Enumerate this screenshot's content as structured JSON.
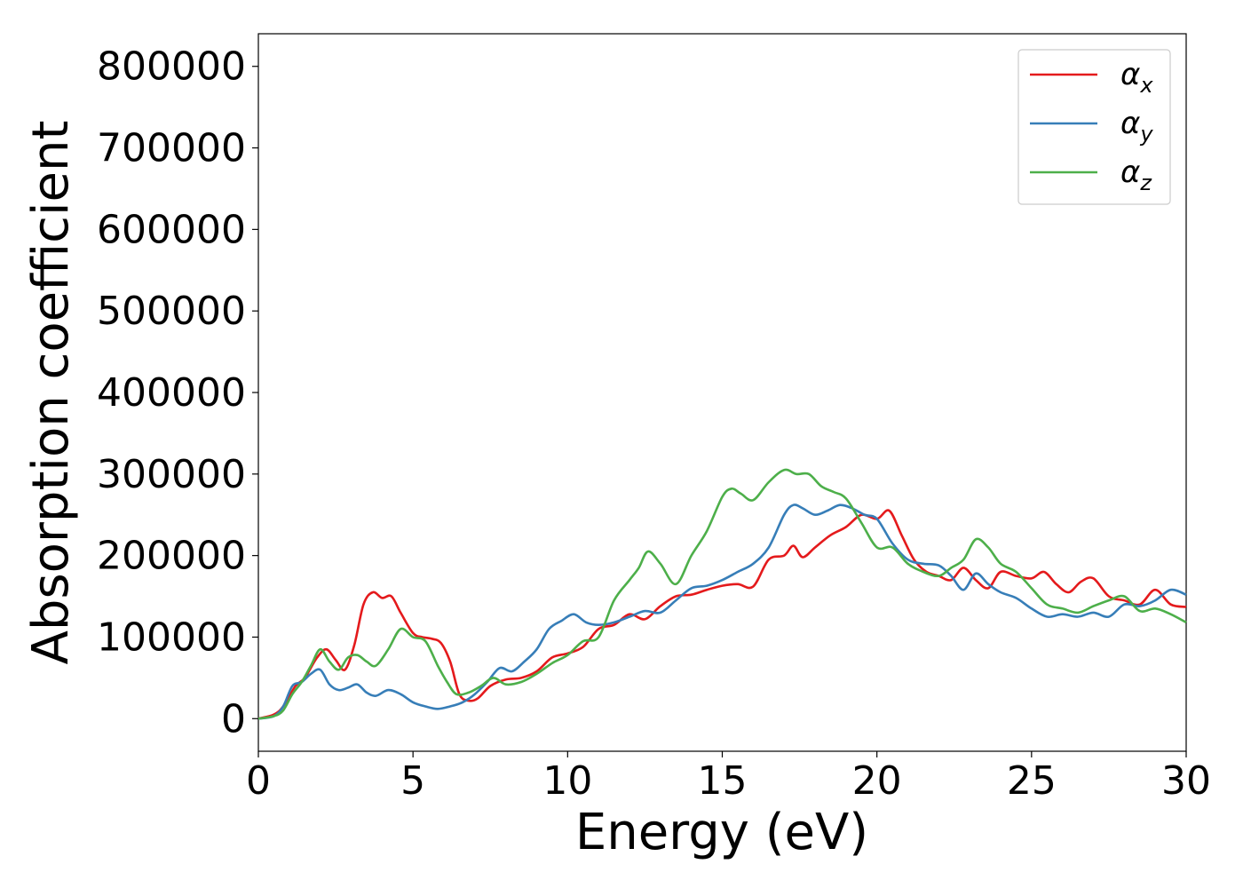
{
  "chart_data": {
    "type": "line",
    "title": "",
    "xlabel": "Energy (eV)",
    "ylabel": "Absorption coefficient",
    "xlim": [
      0,
      30
    ],
    "ylim": [
      -40000,
      840000
    ],
    "xticks": [
      0,
      5,
      10,
      15,
      20,
      25,
      30
    ],
    "yticks": [
      0,
      100000,
      200000,
      300000,
      400000,
      500000,
      600000,
      700000,
      800000
    ],
    "xtick_labels": [
      "0",
      "5",
      "10",
      "15",
      "20",
      "25",
      "30"
    ],
    "ytick_labels": [
      "0",
      "100000",
      "200000",
      "300000",
      "400000",
      "500000",
      "600000",
      "700000",
      "800000"
    ],
    "grid": false,
    "legend_position": "top-right",
    "series": [
      {
        "name": "α_x",
        "legend_base": "α",
        "legend_sub": "x",
        "color": "#e41a1c",
        "x": [
          0,
          0.5,
          0.8,
          1.2,
          1.5,
          1.9,
          2.2,
          2.5,
          2.8,
          3.1,
          3.4,
          3.7,
          4.0,
          4.3,
          4.6,
          5.0,
          5.3,
          5.6,
          5.9,
          6.2,
          6.5,
          6.8,
          7.1,
          7.5,
          8.0,
          8.5,
          9.0,
          9.5,
          10.0,
          10.5,
          11.0,
          11.5,
          12.0,
          12.5,
          13.0,
          13.5,
          14.0,
          14.5,
          15.0,
          15.5,
          16.0,
          16.5,
          17.0,
          17.3,
          17.6,
          18.0,
          18.5,
          19.0,
          19.5,
          20.0,
          20.4,
          20.8,
          21.2,
          21.6,
          22.0,
          22.4,
          22.8,
          23.2,
          23.6,
          24.0,
          24.5,
          25.0,
          25.4,
          25.8,
          26.2,
          26.6,
          27.0,
          27.5,
          28.0,
          28.5,
          29.0,
          29.5,
          30.0
        ],
        "values": [
          0,
          5000,
          15000,
          40000,
          50000,
          75000,
          85000,
          72000,
          60000,
          90000,
          140000,
          155000,
          148000,
          150000,
          130000,
          105000,
          100000,
          98000,
          93000,
          70000,
          30000,
          22000,
          25000,
          40000,
          48000,
          50000,
          58000,
          75000,
          80000,
          88000,
          110000,
          115000,
          128000,
          122000,
          138000,
          150000,
          152000,
          158000,
          163000,
          165000,
          162000,
          195000,
          200000,
          212000,
          198000,
          210000,
          225000,
          235000,
          250000,
          245000,
          255000,
          225000,
          195000,
          180000,
          175000,
          170000,
          185000,
          170000,
          160000,
          180000,
          175000,
          172000,
          180000,
          165000,
          155000,
          168000,
          172000,
          150000,
          145000,
          140000,
          158000,
          140000,
          137000
        ]
      },
      {
        "name": "α_y",
        "legend_base": "α",
        "legend_sub": "y",
        "color": "#377eb8",
        "x": [
          0,
          0.5,
          0.8,
          1.1,
          1.4,
          1.7,
          2.0,
          2.3,
          2.6,
          2.9,
          3.2,
          3.5,
          3.8,
          4.2,
          4.6,
          5.0,
          5.4,
          5.8,
          6.2,
          6.6,
          7.0,
          7.4,
          7.8,
          8.2,
          8.6,
          9.0,
          9.4,
          9.8,
          10.2,
          10.6,
          11.0,
          11.5,
          12.0,
          12.5,
          13.0,
          13.5,
          14.0,
          14.5,
          15.0,
          15.5,
          16.0,
          16.5,
          17.0,
          17.3,
          17.6,
          18.0,
          18.4,
          18.8,
          19.2,
          19.6,
          20.0,
          20.5,
          21.0,
          21.5,
          22.0,
          22.4,
          22.8,
          23.2,
          23.6,
          24.0,
          24.5,
          25.0,
          25.5,
          26.0,
          26.5,
          27.0,
          27.5,
          28.0,
          28.5,
          29.0,
          29.5,
          30.0
        ],
        "values": [
          0,
          3000,
          15000,
          40000,
          45000,
          55000,
          60000,
          42000,
          35000,
          38000,
          42000,
          32000,
          28000,
          35000,
          30000,
          20000,
          15000,
          12000,
          15000,
          20000,
          30000,
          45000,
          62000,
          58000,
          70000,
          85000,
          110000,
          120000,
          128000,
          118000,
          115000,
          118000,
          125000,
          132000,
          130000,
          145000,
          160000,
          163000,
          170000,
          180000,
          190000,
          210000,
          250000,
          262000,
          258000,
          250000,
          255000,
          262000,
          258000,
          250000,
          245000,
          215000,
          195000,
          190000,
          188000,
          175000,
          158000,
          178000,
          165000,
          155000,
          148000,
          135000,
          125000,
          128000,
          125000,
          130000,
          125000,
          140000,
          138000,
          145000,
          158000,
          152000
        ]
      },
      {
        "name": "α_z",
        "legend_base": "α",
        "legend_sub": "z",
        "color": "#4daf4a",
        "x": [
          0,
          0.5,
          0.8,
          1.1,
          1.4,
          1.7,
          2.0,
          2.3,
          2.6,
          2.9,
          3.2,
          3.5,
          3.8,
          4.2,
          4.6,
          5.0,
          5.4,
          5.8,
          6.1,
          6.4,
          6.8,
          7.2,
          7.6,
          8.0,
          8.5,
          9.0,
          9.5,
          10.0,
          10.5,
          11.0,
          11.5,
          12.0,
          12.3,
          12.6,
          13.0,
          13.5,
          14.0,
          14.5,
          15.0,
          15.3,
          15.6,
          16.0,
          16.5,
          17.0,
          17.4,
          17.8,
          18.2,
          18.6,
          19.0,
          19.5,
          20.0,
          20.5,
          21.0,
          21.5,
          22.0,
          22.4,
          22.8,
          23.2,
          23.6,
          24.0,
          24.5,
          25.0,
          25.5,
          26.0,
          26.5,
          27.0,
          27.5,
          28.0,
          28.5,
          29.0,
          29.5,
          30.0
        ],
        "values": [
          0,
          3000,
          10000,
          30000,
          45000,
          65000,
          85000,
          70000,
          60000,
          75000,
          78000,
          70000,
          65000,
          85000,
          110000,
          100000,
          95000,
          65000,
          45000,
          30000,
          32000,
          40000,
          50000,
          42000,
          45000,
          55000,
          68000,
          78000,
          95000,
          100000,
          145000,
          170000,
          185000,
          205000,
          190000,
          165000,
          200000,
          230000,
          272000,
          282000,
          276000,
          268000,
          290000,
          305000,
          300000,
          300000,
          285000,
          278000,
          270000,
          240000,
          210000,
          210000,
          190000,
          180000,
          175000,
          185000,
          195000,
          220000,
          210000,
          190000,
          180000,
          160000,
          140000,
          135000,
          130000,
          138000,
          145000,
          150000,
          132000,
          135000,
          128000,
          118000
        ]
      }
    ]
  }
}
